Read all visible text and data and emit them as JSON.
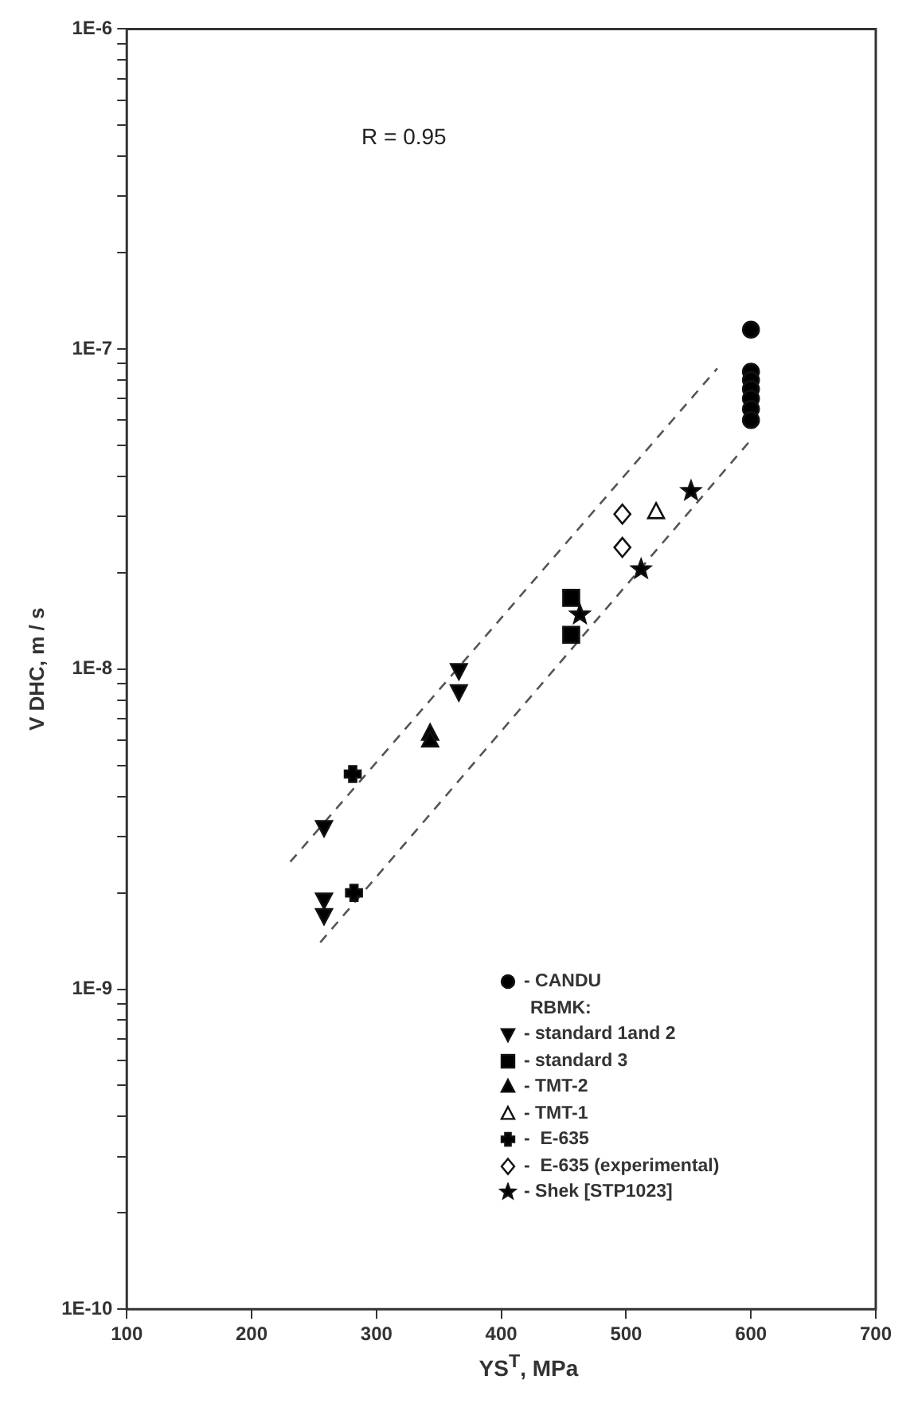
{
  "chart_data": {
    "type": "scatter",
    "xlabel": "YS$^{T}$, MPa",
    "ylabel": "V DHC, m / s",
    "legend_title": "RBMK:",
    "legend": "bottom right",
    "log": "y",
    "grid": false,
    "xlim": [
      100,
      700
    ],
    "xticks": [
      100,
      200,
      300,
      400,
      500,
      600,
      700
    ],
    "ylim": [
      1e-10,
      1e-06
    ],
    "yticks": [
      {
        "value": 1e-10,
        "label": "1E-10"
      },
      {
        "value": 2e-10,
        "label": null
      },
      {
        "value": 3e-10,
        "label": null
      },
      {
        "value": 4e-10,
        "label": null
      },
      {
        "value": 5e-10,
        "label": null
      },
      {
        "value": 6e-10,
        "label": null
      },
      {
        "value": 7e-10,
        "label": null
      },
      {
        "value": 8e-10,
        "label": null
      },
      {
        "value": 9e-10,
        "label": null
      },
      {
        "value": 1e-09,
        "label": "1E-9"
      },
      {
        "value": 2e-09,
        "label": null
      },
      {
        "value": 3e-09,
        "label": null
      },
      {
        "value": 4e-09,
        "label": null
      },
      {
        "value": 5e-09,
        "label": null
      },
      {
        "value": 6e-09,
        "label": null
      },
      {
        "value": 7e-09,
        "label": null
      },
      {
        "value": 8e-09,
        "label": null
      },
      {
        "value": 9e-09,
        "label": null
      },
      {
        "value": 1e-08,
        "label": "1E-8"
      },
      {
        "value": 2e-08,
        "label": null
      },
      {
        "value": 3e-08,
        "label": null
      },
      {
        "value": 4e-08,
        "label": null
      },
      {
        "value": 5e-08,
        "label": null
      },
      {
        "value": 6e-08,
        "label": null
      },
      {
        "value": 7e-08,
        "label": null
      },
      {
        "value": 8e-08,
        "label": null
      },
      {
        "value": 9e-08,
        "label": null
      },
      {
        "value": 1e-07,
        "label": "1E-7"
      },
      {
        "value": 2e-07,
        "label": null
      },
      {
        "value": 3e-07,
        "label": null
      },
      {
        "value": 4e-07,
        "label": null
      },
      {
        "value": 5e-07,
        "label": null
      },
      {
        "value": 6e-07,
        "label": null
      },
      {
        "value": 7e-07,
        "label": null
      },
      {
        "value": 8e-07,
        "label": null
      },
      {
        "value": 9e-07,
        "label": null
      },
      {
        "value": 1e-06,
        "label": "1E-6"
      }
    ],
    "annotations": [
      "R = 0.95"
    ],
    "series": [
      {
        "type": "line",
        "color": "#555555",
        "line_style": "dashed",
        "marker": "none",
        "x": [
          231,
          573
        ],
        "values": [
          2.5e-09,
          8.7e-08
        ]
      },
      {
        "type": "line",
        "color": "#555555",
        "line_style": "dashed",
        "marker": "none",
        "x": [
          255,
          598
        ],
        "values": [
          1.4e-09,
          5.1e-08
        ]
      },
      {
        "name": "- CANDU",
        "color": "#000000",
        "marker": "circle",
        "x": [
          600,
          600,
          600,
          600,
          600,
          600,
          600
        ],
        "values": [
          1.15e-07,
          8.5e-08,
          8e-08,
          7.5e-08,
          7e-08,
          6.5e-08,
          6e-08
        ]
      },
      {
        "name": "- standard 1and 2",
        "color": "#000000",
        "marker": "triangle-down",
        "x": [
          366,
          366,
          258,
          258,
          258
        ],
        "values": [
          9.9e-09,
          8.5e-09,
          3.2e-09,
          1.9e-09,
          1.7e-09
        ]
      },
      {
        "name": "- standard 3",
        "color": "#000000",
        "marker": "square",
        "x": [
          456,
          456
        ],
        "values": [
          1.67e-08,
          1.28e-08
        ]
      },
      {
        "name": "- TMT-2",
        "color": "#000000",
        "marker": "triangle",
        "x": [
          343,
          343
        ],
        "values": [
          6.3e-09,
          6e-09
        ]
      },
      {
        "name": "- TMT-1",
        "color": "#ffffff",
        "marker": "triangle",
        "x": [
          524
        ],
        "values": [
          3.1e-08
        ]
      },
      {
        "name": "-  E-635",
        "color": "#000000",
        "marker": "cross",
        "x": [
          281,
          282
        ],
        "values": [
          4.7e-09,
          2e-09
        ]
      },
      {
        "name": "-  E-635 (experimental)",
        "color": "#ffffff",
        "marker": "diamond",
        "x": [
          497,
          497
        ],
        "values": [
          3.05e-08,
          2.4e-08
        ]
      },
      {
        "name": "- Shek [STP1023]",
        "color": "#000000",
        "marker": "star",
        "x": [
          552,
          512,
          463
        ],
        "values": [
          3.6e-08,
          2.05e-08,
          1.48e-08
        ]
      }
    ]
  }
}
